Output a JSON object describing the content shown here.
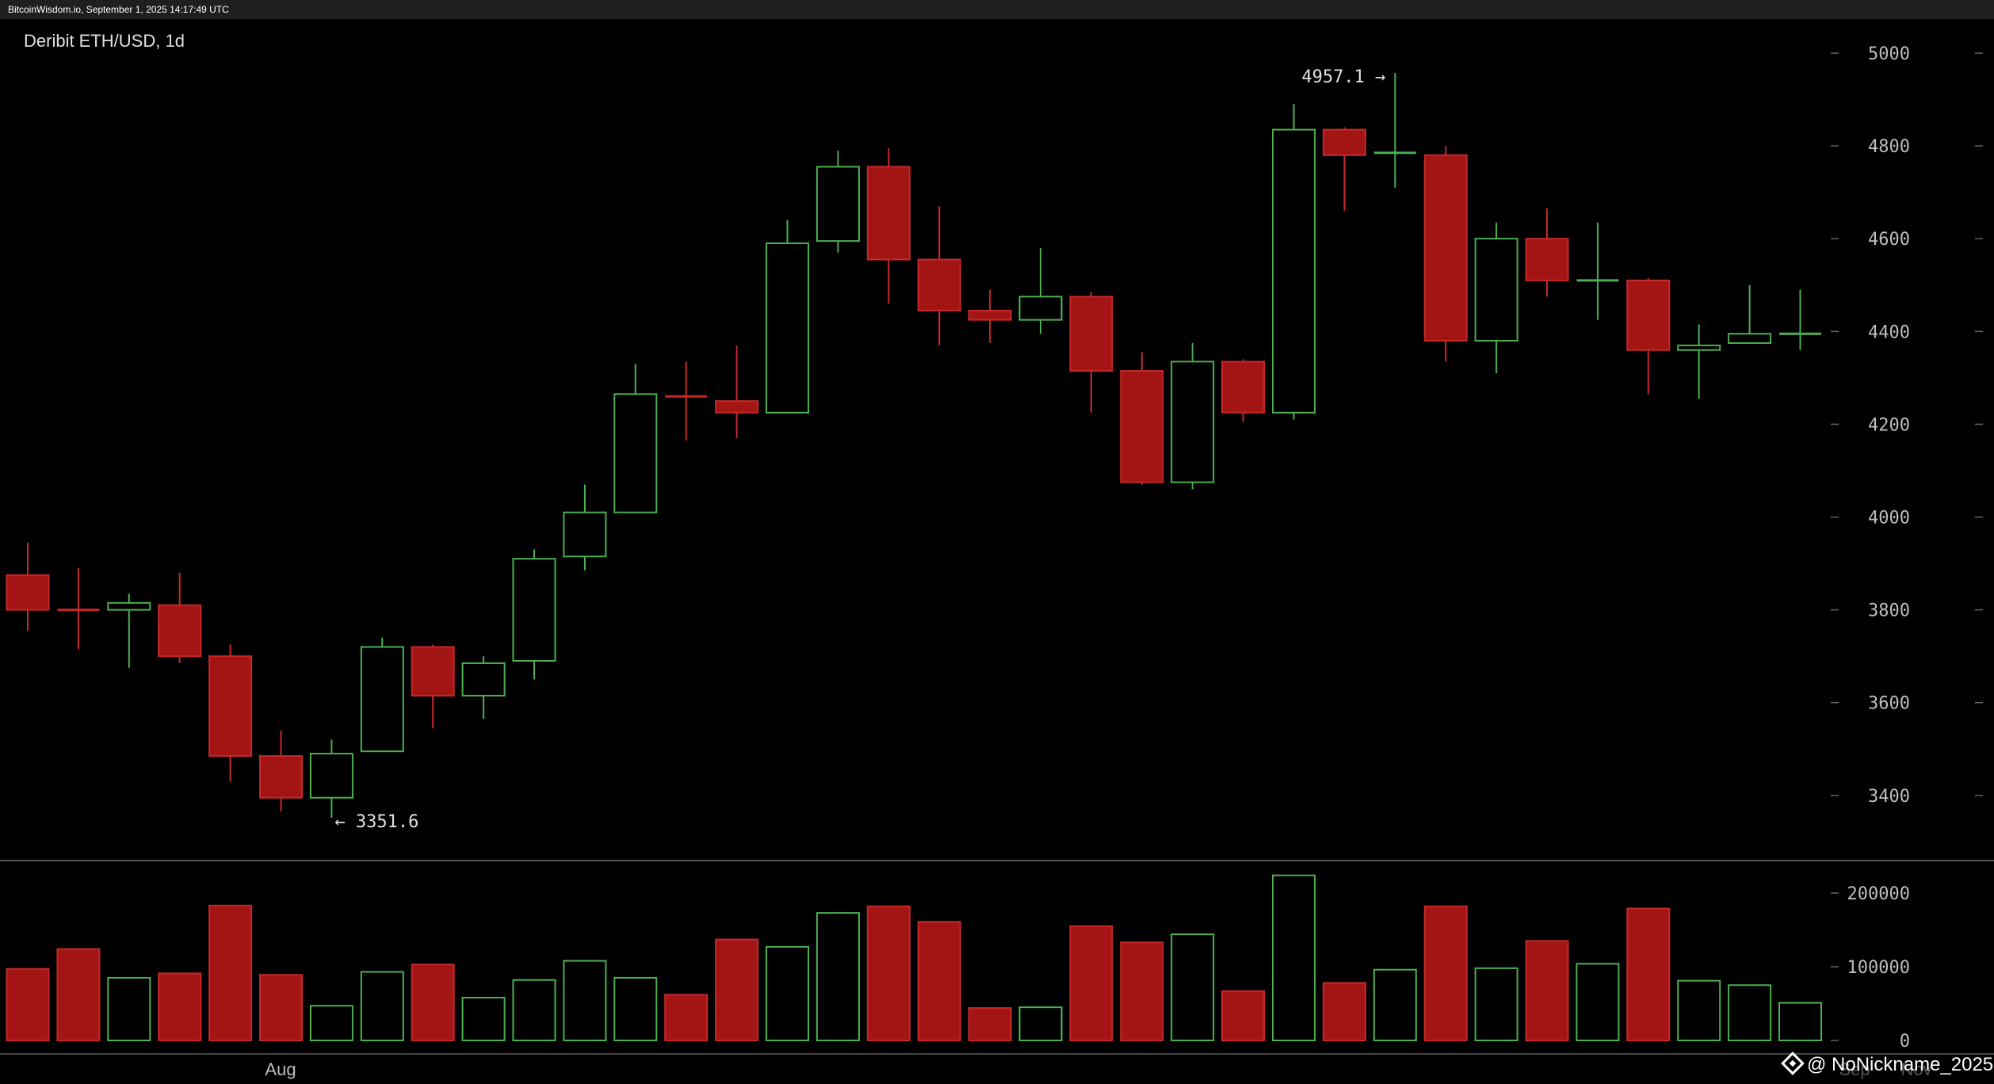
{
  "source_line": "BitcoinWisdom.io, September 1, 2025 14:17:49 UTC",
  "watermark": "@ NoNickname_2025",
  "chart_data": {
    "type": "candlestick",
    "title": "Deribit ETH/USD, 1d",
    "price_axis": {
      "ticks": [
        3400,
        3600,
        3800,
        4000,
        4200,
        4400,
        4600,
        4800,
        5000
      ],
      "ylim": [
        3240,
        5040
      ]
    },
    "volume_axis": {
      "ticks": [
        "0",
        "100000",
        "200000"
      ],
      "tick_values": [
        0,
        100000,
        200000
      ],
      "ylim": [
        0,
        235000
      ]
    },
    "x_labels": [
      "Aug",
      "Sep",
      "Nov"
    ],
    "annotations": {
      "high": "4957.1 →",
      "low": "← 3351.6"
    },
    "colors": {
      "up": "#4caf50",
      "down": "#c62828",
      "down_fill": "#a31515",
      "background": "#000000"
    },
    "candles": [
      {
        "o": 3875,
        "h": 3945,
        "l": 3755,
        "c": 3800,
        "v": 97000
      },
      {
        "o": 3800,
        "h": 3890,
        "l": 3715,
        "c": 3795,
        "v": 124000
      },
      {
        "o": 3800,
        "h": 3835,
        "l": 3675,
        "c": 3815,
        "v": 85000
      },
      {
        "o": 3810,
        "h": 3880,
        "l": 3685,
        "c": 3700,
        "v": 91000
      },
      {
        "o": 3700,
        "h": 3725,
        "l": 3430,
        "c": 3485,
        "v": 183000
      },
      {
        "o": 3485,
        "h": 3540,
        "l": 3365,
        "c": 3395,
        "v": 89000
      },
      {
        "o": 3395,
        "h": 3520,
        "l": 3351.6,
        "c": 3490,
        "v": 47000
      },
      {
        "o": 3495,
        "h": 3740,
        "l": 3495,
        "c": 3720,
        "v": 93000
      },
      {
        "o": 3720,
        "h": 3725,
        "l": 3545,
        "c": 3615,
        "v": 103000
      },
      {
        "o": 3615,
        "h": 3700,
        "l": 3565,
        "c": 3685,
        "v": 58000
      },
      {
        "o": 3690,
        "h": 3930,
        "l": 3650,
        "c": 3910,
        "v": 82000
      },
      {
        "o": 3915,
        "h": 4070,
        "l": 3885,
        "c": 4010,
        "v": 108000
      },
      {
        "o": 4010,
        "h": 4330,
        "l": 4010,
        "c": 4265,
        "v": 85000
      },
      {
        "o": 4260,
        "h": 4335,
        "l": 4165,
        "c": 4255,
        "v": 62000
      },
      {
        "o": 4250,
        "h": 4370,
        "l": 4170,
        "c": 4225,
        "v": 137000
      },
      {
        "o": 4225,
        "h": 4640,
        "l": 4225,
        "c": 4590,
        "v": 127000
      },
      {
        "o": 4595,
        "h": 4790,
        "l": 4570,
        "c": 4755,
        "v": 173000
      },
      {
        "o": 4755,
        "h": 4795,
        "l": 4460,
        "c": 4555,
        "v": 182000
      },
      {
        "o": 4555,
        "h": 4670,
        "l": 4370,
        "c": 4445,
        "v": 161000
      },
      {
        "o": 4445,
        "h": 4490,
        "l": 4375,
        "c": 4425,
        "v": 44000
      },
      {
        "o": 4425,
        "h": 4580,
        "l": 4395,
        "c": 4475,
        "v": 45000
      },
      {
        "o": 4475,
        "h": 4485,
        "l": 4225,
        "c": 4315,
        "v": 155000
      },
      {
        "o": 4315,
        "h": 4355,
        "l": 4070,
        "c": 4075,
        "v": 133000
      },
      {
        "o": 4075,
        "h": 4375,
        "l": 4060,
        "c": 4335,
        "v": 144000
      },
      {
        "o": 4335,
        "h": 4340,
        "l": 4205,
        "c": 4225,
        "v": 67000
      },
      {
        "o": 4225,
        "h": 4890,
        "l": 4210,
        "c": 4835,
        "v": 224000
      },
      {
        "o": 4835,
        "h": 4840,
        "l": 4660,
        "c": 4780,
        "v": 78000
      },
      {
        "o": 4780,
        "h": 4957.1,
        "l": 4710,
        "c": 4785,
        "v": 96000
      },
      {
        "o": 4780,
        "h": 4800,
        "l": 4335,
        "c": 4380,
        "v": 182000
      },
      {
        "o": 4380,
        "h": 4635,
        "l": 4310,
        "c": 4600,
        "v": 98000
      },
      {
        "o": 4600,
        "h": 4665,
        "l": 4475,
        "c": 4510,
        "v": 135000
      },
      {
        "o": 4510,
        "h": 4635,
        "l": 4425,
        "c": 4510,
        "v": 104000
      },
      {
        "o": 4510,
        "h": 4515,
        "l": 4265,
        "c": 4360,
        "v": 179000
      },
      {
        "o": 4360,
        "h": 4415,
        "l": 4255,
        "c": 4370,
        "v": 81000
      },
      {
        "o": 4375,
        "h": 4500,
        "l": 4375,
        "c": 4395,
        "v": 75000
      },
      {
        "o": 4395,
        "h": 4490,
        "l": 4360,
        "c": 4395,
        "v": 51000
      }
    ]
  }
}
